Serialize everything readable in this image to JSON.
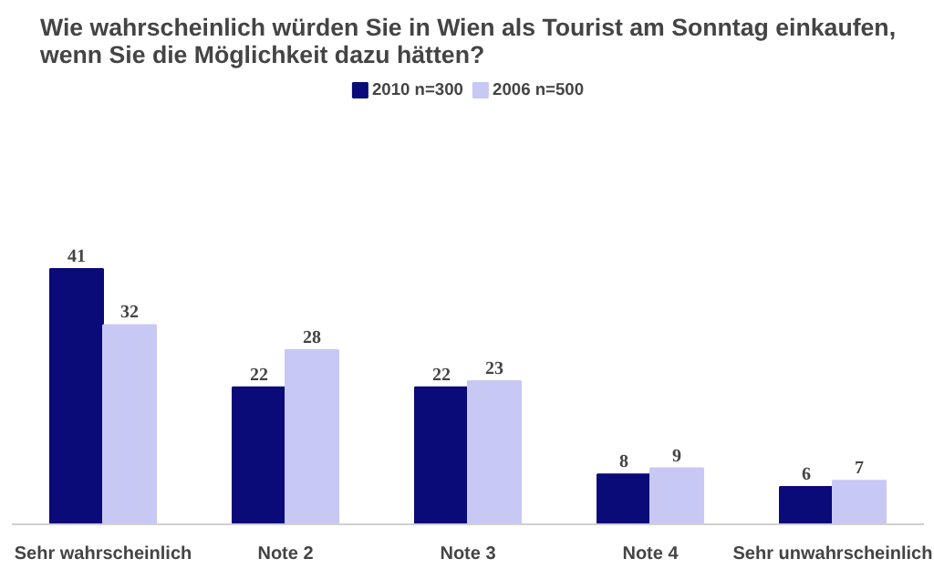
{
  "chart_data": {
    "type": "bar",
    "title": "Wie wahrscheinlich würden Sie in Wien als Tourist am Sonntag einkaufen,\nwenn Sie die Möglichkeit dazu hätten?",
    "categories": [
      "Sehr wahrscheinlich",
      "Note 2",
      "Note 3",
      "Note 4",
      "Sehr unwahrscheinlich"
    ],
    "series": [
      {
        "name": "2010 n=300",
        "color": "#0a0a78",
        "values": [
          41,
          22,
          22,
          8,
          6
        ]
      },
      {
        "name": "2006 n=500",
        "color": "#c8c8f4",
        "values": [
          32,
          28,
          23,
          9,
          7
        ]
      }
    ],
    "data_labels": true,
    "legend": "top",
    "grid": false
  }
}
